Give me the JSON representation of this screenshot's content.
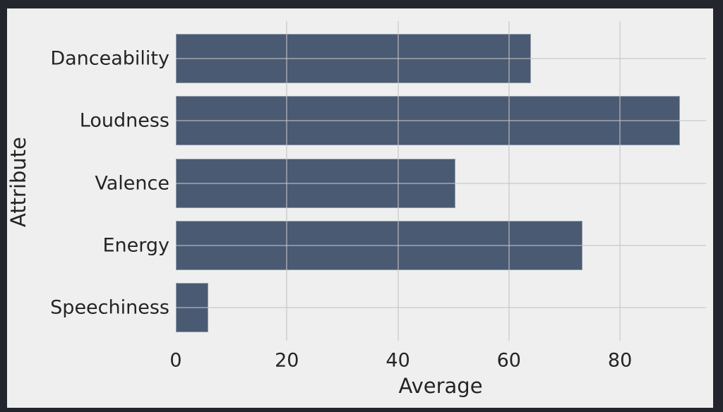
{
  "chart_data": {
    "type": "bar",
    "orientation": "horizontal",
    "title": "",
    "categories": [
      "Danceability",
      "Loudness",
      "Valence",
      "Energy",
      "Speechiness"
    ],
    "values": [
      64,
      90.8,
      50.3,
      73.3,
      5.9
    ],
    "xlabel": "Average",
    "ylabel": "Attribute",
    "xticks": [
      0,
      20,
      40,
      60,
      80
    ],
    "xlim": [
      0,
      95.5
    ],
    "grid": true,
    "legend": false,
    "colors": {
      "bar": "#4a5a73",
      "figure_background": "#efefef",
      "page_background": "#23262c",
      "gridline": "#c3c3c3",
      "text": "#242424"
    }
  }
}
